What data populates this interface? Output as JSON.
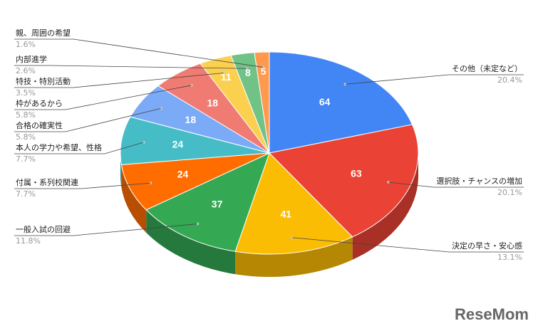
{
  "chart_data": {
    "type": "pie3d",
    "categories": [
      "その他（未定など）",
      "選択肢・チャンスの増加",
      "決定の早さ・安心感",
      "一般入試の回避",
      "付属・系列校関連",
      "本人の学力や希望、性格",
      "合格の確実性",
      "枠があるから",
      "特技・特別活動",
      "内部進学",
      "親、周囲の希望"
    ],
    "values": [
      64,
      63,
      41,
      37,
      24,
      24,
      18,
      18,
      11,
      8,
      5
    ],
    "percent_labels": [
      "20.4%",
      "20.1%",
      "13.1%",
      "11.8%",
      "7.7%",
      "7.7%",
      "5.8%",
      "5.8%",
      "3.5%",
      "2.6%",
      "1.6%"
    ],
    "colors": [
      "#4285f4",
      "#ea4335",
      "#fbbc04",
      "#34a853",
      "#ff6d01",
      "#46bdc6",
      "#7baaf7",
      "#f07b72",
      "#fcd04f",
      "#71c287",
      "#ff994d"
    ],
    "logo": "ReseMom"
  }
}
